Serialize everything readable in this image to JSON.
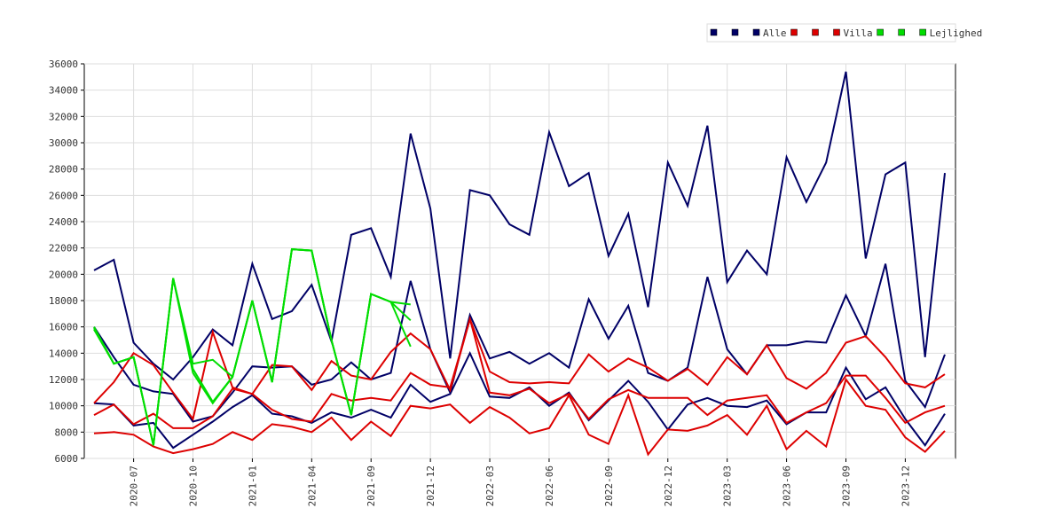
{
  "chart_data": {
    "type": "line",
    "categories": [
      null,
      null,
      "2020-07",
      null,
      null,
      "2020-10",
      null,
      null,
      "2021-01",
      null,
      null,
      "2021-04",
      null,
      null,
      "2021-09",
      null,
      null,
      "2021-12",
      null,
      null,
      "2022-03",
      null,
      null,
      "2022-06",
      null,
      null,
      "2022-09",
      null,
      null,
      "2022-12",
      null,
      null,
      "2023-03",
      null,
      null,
      "2023-06",
      null,
      null,
      "2023-09",
      null,
      null,
      "2023-12",
      null,
      null
    ],
    "ylim": [
      6000,
      36000
    ],
    "yticks": [
      6000,
      8000,
      10000,
      12000,
      14000,
      16000,
      18000,
      20000,
      22000,
      24000,
      26000,
      28000,
      30000,
      32000,
      34000,
      36000
    ],
    "grid": true,
    "legend": "top-right",
    "series": [
      {
        "color": "#000066",
        "values": [
          20300,
          21100,
          14800,
          13200,
          12000,
          13700,
          15800,
          14600,
          20800,
          16600,
          17200,
          19200,
          14900,
          23000,
          23500,
          19800,
          30700,
          25000,
          13600,
          26400,
          26000,
          23800,
          23000,
          30800,
          26700,
          27700,
          21400,
          24600,
          17500,
          28500,
          25200,
          31300,
          19400,
          21800,
          20000,
          28900,
          25500,
          28500,
          35400,
          21200,
          27600,
          28500,
          13700,
          27700
        ]
      },
      {
        "color": "#000066",
        "values": [
          16000,
          13700,
          11600,
          11100,
          10900,
          8800,
          9200,
          11000,
          13000,
          12900,
          13000,
          11600,
          12000,
          13300,
          12000,
          12500,
          19500,
          14300,
          11000,
          16900,
          13600,
          14100,
          13200,
          14000,
          12900,
          18100,
          15100,
          17600,
          12500,
          11900,
          12900,
          19800,
          14300,
          12400,
          14600,
          14600,
          14900,
          14800,
          18400,
          15300,
          20800,
          11900,
          9900,
          13900
        ]
      },
      {
        "name": "Alle",
        "color": "#000066",
        "values": [
          10200,
          10100,
          8500,
          8700,
          6800,
          7800,
          8800,
          9900,
          10800,
          9400,
          9200,
          8700,
          9500,
          9100,
          9700,
          9100,
          11600,
          10300,
          10900,
          14000,
          10700,
          10600,
          11400,
          10000,
          11000,
          8900,
          10400,
          11900,
          10300,
          8200,
          10100,
          10600,
          10000,
          9900,
          10400,
          8600,
          9500,
          9500,
          12900,
          10500,
          11400,
          9000,
          7000,
          9400
        ]
      },
      {
        "color": "#dd0000",
        "values": [
          10200,
          11800,
          14000,
          13100,
          11000,
          9000,
          15600,
          11400,
          10900,
          13100,
          13000,
          11200,
          13400,
          12300,
          12000,
          14100,
          15500,
          14300,
          11200,
          16600,
          12600,
          11800,
          11700,
          11800,
          11700,
          13900,
          12600,
          13600,
          12900,
          11900,
          12800,
          11600,
          13700,
          12400,
          14600,
          12100,
          11300,
          12500,
          14800,
          15300,
          13700,
          11700,
          11400,
          12400
        ]
      },
      {
        "color": "#dd0000",
        "values": [
          9300,
          10100,
          8600,
          9400,
          8300,
          8300,
          9200,
          11300,
          10900,
          9700,
          9000,
          8800,
          10900,
          10400,
          10600,
          10400,
          12500,
          11600,
          11400,
          16600,
          11000,
          10800,
          11300,
          10200,
          10900,
          9000,
          10500,
          11200,
          10600,
          10600,
          10600,
          9300,
          10400,
          10600,
          10800,
          8700,
          9500,
          10200,
          12300,
          12300,
          10600,
          8700,
          9500,
          10000
        ]
      },
      {
        "name": "Villa",
        "color": "#dd0000",
        "values": [
          7900,
          8000,
          7800,
          6900,
          6400,
          6700,
          7100,
          8000,
          7400,
          8600,
          8400,
          8000,
          9100,
          7400,
          8800,
          7700,
          10000,
          9800,
          10100,
          8700,
          9900,
          9100,
          7900,
          8300,
          10800,
          7800,
          7100,
          10800,
          6300,
          8200,
          8100,
          8500,
          9300,
          7800,
          10000,
          6700,
          8100,
          6900,
          12000,
          10000,
          9700,
          7600,
          6500,
          8100
        ]
      },
      {
        "color": "#00dd00",
        "values": [
          16000,
          13200,
          13700,
          7000,
          19700,
          13200,
          13500,
          12200,
          18000,
          11800,
          21900,
          21800,
          15000,
          9300,
          18500,
          17900,
          17700,
          null,
          null,
          null,
          null,
          null,
          null,
          null,
          null,
          null,
          null,
          null,
          null,
          null,
          null,
          null,
          null,
          null,
          null,
          null,
          null,
          null,
          null,
          null,
          null,
          null,
          null,
          null
        ]
      },
      {
        "color": "#00dd00",
        "values": [
          15900,
          13200,
          13700,
          7000,
          19700,
          12800,
          10300,
          12200,
          18000,
          11800,
          21900,
          21800,
          15000,
          9300,
          18500,
          17900,
          16500,
          null,
          null,
          null,
          null,
          null,
          null,
          null,
          null,
          null,
          null,
          null,
          null,
          null,
          null,
          null,
          null,
          null,
          null,
          null,
          null,
          null,
          null,
          null,
          null,
          null,
          null,
          null
        ]
      },
      {
        "name": "Lejlighed",
        "color": "#00dd00",
        "values": [
          15800,
          13200,
          13700,
          7000,
          19700,
          12500,
          10200,
          12200,
          18000,
          11800,
          21900,
          21800,
          15000,
          9300,
          18500,
          17900,
          14500,
          null,
          null,
          null,
          null,
          null,
          null,
          null,
          null,
          null,
          null,
          null,
          null,
          null,
          null,
          null,
          null,
          null,
          null,
          null,
          null,
          null,
          null,
          null,
          null,
          null,
          null,
          null
        ]
      }
    ]
  }
}
